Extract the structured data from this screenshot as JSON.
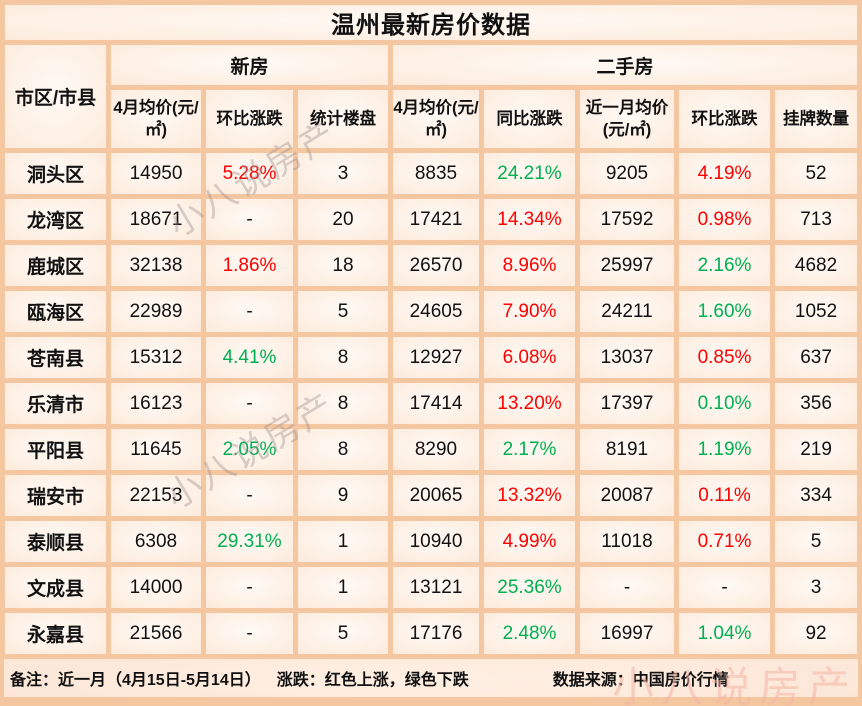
{
  "title": "温州最新房价数据",
  "chart_data": {
    "type": "table",
    "title": "温州最新房价数据",
    "corner_header": "市区/市县",
    "column_groups": [
      {
        "label": "新房",
        "span": 3
      },
      {
        "label": "二手房",
        "span": 5
      }
    ],
    "columns": [
      "4月均价(元/㎡)",
      "环比涨跌",
      "统计楼盘",
      "4月均价(元/㎡)",
      "同比涨跌",
      "近一月均价(元/㎡)",
      "环比涨跌",
      "挂牌数量"
    ],
    "color_legend": {
      "r": "red = 上涨 (up)",
      "g": "green = 下跌 (down)",
      "k": "black = neutral"
    },
    "rows": [
      {
        "region": "洞头区",
        "cells": [
          [
            "14950",
            "k"
          ],
          [
            "5.28%",
            "r"
          ],
          [
            "3",
            "k"
          ],
          [
            "8835",
            "k"
          ],
          [
            "24.21%",
            "g"
          ],
          [
            "9205",
            "k"
          ],
          [
            "4.19%",
            "r"
          ],
          [
            "52",
            "k"
          ]
        ]
      },
      {
        "region": "龙湾区",
        "cells": [
          [
            "18671",
            "k"
          ],
          [
            "-",
            "k"
          ],
          [
            "20",
            "k"
          ],
          [
            "17421",
            "k"
          ],
          [
            "14.34%",
            "r"
          ],
          [
            "17592",
            "k"
          ],
          [
            "0.98%",
            "r"
          ],
          [
            "713",
            "k"
          ]
        ]
      },
      {
        "region": "鹿城区",
        "cells": [
          [
            "32138",
            "k"
          ],
          [
            "1.86%",
            "r"
          ],
          [
            "18",
            "k"
          ],
          [
            "26570",
            "k"
          ],
          [
            "8.96%",
            "r"
          ],
          [
            "25997",
            "k"
          ],
          [
            "2.16%",
            "g"
          ],
          [
            "4682",
            "k"
          ]
        ]
      },
      {
        "region": "瓯海区",
        "cells": [
          [
            "22989",
            "k"
          ],
          [
            "-",
            "k"
          ],
          [
            "5",
            "k"
          ],
          [
            "24605",
            "k"
          ],
          [
            "7.90%",
            "r"
          ],
          [
            "24211",
            "k"
          ],
          [
            "1.60%",
            "g"
          ],
          [
            "1052",
            "k"
          ]
        ]
      },
      {
        "region": "苍南县",
        "cells": [
          [
            "15312",
            "k"
          ],
          [
            "4.41%",
            "g"
          ],
          [
            "8",
            "k"
          ],
          [
            "12927",
            "k"
          ],
          [
            "6.08%",
            "r"
          ],
          [
            "13037",
            "k"
          ],
          [
            "0.85%",
            "r"
          ],
          [
            "637",
            "k"
          ]
        ]
      },
      {
        "region": "乐清市",
        "cells": [
          [
            "16123",
            "k"
          ],
          [
            "-",
            "k"
          ],
          [
            "8",
            "k"
          ],
          [
            "17414",
            "k"
          ],
          [
            "13.20%",
            "r"
          ],
          [
            "17397",
            "k"
          ],
          [
            "0.10%",
            "g"
          ],
          [
            "356",
            "k"
          ]
        ]
      },
      {
        "region": "平阳县",
        "cells": [
          [
            "11645",
            "k"
          ],
          [
            "2.05%",
            "g"
          ],
          [
            "8",
            "k"
          ],
          [
            "8290",
            "k"
          ],
          [
            "2.17%",
            "g"
          ],
          [
            "8191",
            "k"
          ],
          [
            "1.19%",
            "g"
          ],
          [
            "219",
            "k"
          ]
        ]
      },
      {
        "region": "瑞安市",
        "cells": [
          [
            "22153",
            "k"
          ],
          [
            "-",
            "k"
          ],
          [
            "9",
            "k"
          ],
          [
            "20065",
            "k"
          ],
          [
            "13.32%",
            "r"
          ],
          [
            "20087",
            "k"
          ],
          [
            "0.11%",
            "r"
          ],
          [
            "334",
            "k"
          ]
        ]
      },
      {
        "region": "泰顺县",
        "cells": [
          [
            "6308",
            "k"
          ],
          [
            "29.31%",
            "g"
          ],
          [
            "1",
            "k"
          ],
          [
            "10940",
            "k"
          ],
          [
            "4.99%",
            "r"
          ],
          [
            "11018",
            "k"
          ],
          [
            "0.71%",
            "r"
          ],
          [
            "5",
            "k"
          ]
        ]
      },
      {
        "region": "文成县",
        "cells": [
          [
            "14000",
            "k"
          ],
          [
            "-",
            "k"
          ],
          [
            "1",
            "k"
          ],
          [
            "13121",
            "k"
          ],
          [
            "25.36%",
            "g"
          ],
          [
            "-",
            "k"
          ],
          [
            "-",
            "k"
          ],
          [
            "3",
            "k"
          ]
        ]
      },
      {
        "region": "永嘉县",
        "cells": [
          [
            "21566",
            "k"
          ],
          [
            "-",
            "k"
          ],
          [
            "5",
            "k"
          ],
          [
            "17176",
            "k"
          ],
          [
            "2.48%",
            "g"
          ],
          [
            "16997",
            "k"
          ],
          [
            "1.04%",
            "g"
          ],
          [
            "92",
            "k"
          ]
        ]
      }
    ]
  },
  "footer": {
    "note": "备注：近一月（4月15日-5月14日）",
    "legend": "涨跌：红色上涨，绿色下跌",
    "source": "数据来源：中国房价行情"
  },
  "watermark": {
    "text": "小八说房产"
  },
  "colors": {
    "up_red": "#fe0000",
    "down_green": "#00b050",
    "grid_peach": "#f4c7a0",
    "cell_bg": "#fdecde",
    "text_black": "#111111"
  }
}
